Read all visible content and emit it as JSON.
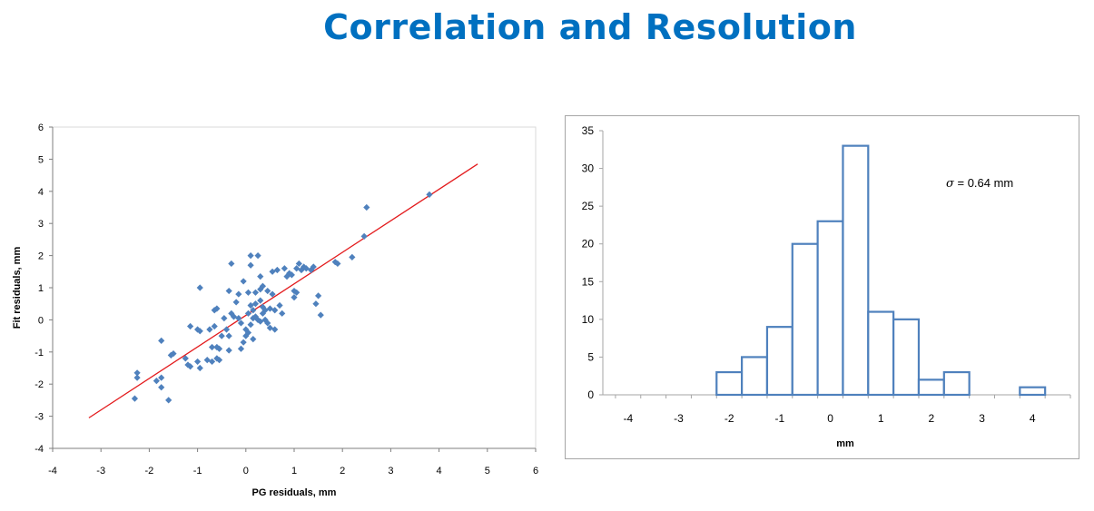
{
  "title": "Correlation and Resolution",
  "chart_data": [
    {
      "type": "scatter",
      "xlabel": "PG residuals, mm",
      "ylabel": "Fit residuals, mm",
      "xlim": [
        -4,
        6
      ],
      "ylim": [
        -4,
        6
      ],
      "xticks": [
        "-4",
        "-3",
        "-2",
        "-1",
        "0",
        "1",
        "2",
        "3",
        "4",
        "5",
        "6"
      ],
      "yticks": [
        "-4",
        "-3",
        "-2",
        "-1",
        "0",
        "1",
        "2",
        "3",
        "4",
        "5",
        "6"
      ],
      "grid": false,
      "colors": {
        "points": "#4f81bd",
        "fit_line": "#e31a1c"
      },
      "fit_line": {
        "x": [
          -3.25,
          4.8
        ],
        "y": [
          -3.05,
          4.85
        ]
      },
      "points": [
        [
          -2.25,
          -1.65
        ],
        [
          -2.25,
          -1.8
        ],
        [
          -2.3,
          -2.45
        ],
        [
          -1.85,
          -1.9
        ],
        [
          -1.75,
          -1.8
        ],
        [
          -1.75,
          -2.1
        ],
        [
          -1.6,
          -2.5
        ],
        [
          -1.75,
          -0.65
        ],
        [
          -1.5,
          -1.05
        ],
        [
          -1.55,
          -1.1
        ],
        [
          -1.25,
          -1.2
        ],
        [
          -1.2,
          -1.4
        ],
        [
          -1.15,
          -1.45
        ],
        [
          -1.15,
          -0.2
        ],
        [
          -1.0,
          -0.3
        ],
        [
          -0.95,
          -0.35
        ],
        [
          -1.0,
          -1.3
        ],
        [
          -0.95,
          -1.5
        ],
        [
          -0.95,
          1.0
        ],
        [
          -0.8,
          -1.25
        ],
        [
          -0.75,
          -0.3
        ],
        [
          -0.7,
          -0.85
        ],
        [
          -0.7,
          -1.3
        ],
        [
          -0.65,
          -0.2
        ],
        [
          -0.6,
          -0.85
        ],
        [
          -0.6,
          -1.2
        ],
        [
          -0.65,
          0.3
        ],
        [
          -0.6,
          0.35
        ],
        [
          -0.55,
          -1.25
        ],
        [
          -0.55,
          -0.9
        ],
        [
          -0.5,
          -0.5
        ],
        [
          -0.45,
          0.05
        ],
        [
          -0.4,
          -0.3
        ],
        [
          -0.35,
          -0.5
        ],
        [
          -0.35,
          -0.95
        ],
        [
          -0.35,
          0.9
        ],
        [
          -0.3,
          1.75
        ],
        [
          -0.3,
          0.2
        ],
        [
          -0.25,
          0.1
        ],
        [
          -0.15,
          0.05
        ],
        [
          -0.15,
          0.8
        ],
        [
          -0.1,
          -0.1
        ],
        [
          -0.1,
          -0.9
        ],
        [
          -0.05,
          -0.7
        ],
        [
          0.0,
          -0.5
        ],
        [
          0.0,
          -0.3
        ],
        [
          0.05,
          -0.4
        ],
        [
          0.05,
          0.2
        ],
        [
          0.1,
          -0.15
        ],
        [
          0.1,
          0.45
        ],
        [
          0.15,
          -0.6
        ],
        [
          0.15,
          0.05
        ],
        [
          0.2,
          0.1
        ],
        [
          0.2,
          0.5
        ],
        [
          0.2,
          0.85
        ],
        [
          0.25,
          0.0
        ],
        [
          0.3,
          -0.05
        ],
        [
          0.3,
          0.6
        ],
        [
          0.3,
          0.95
        ],
        [
          0.35,
          0.2
        ],
        [
          0.35,
          0.4
        ],
        [
          0.4,
          0.3
        ],
        [
          0.4,
          0.0
        ],
        [
          0.45,
          0.9
        ],
        [
          0.45,
          -0.1
        ],
        [
          0.5,
          0.35
        ],
        [
          0.55,
          0.8
        ],
        [
          0.55,
          1.5
        ],
        [
          0.6,
          0.3
        ],
        [
          0.6,
          -0.3
        ],
        [
          0.65,
          1.55
        ],
        [
          0.7,
          0.45
        ],
        [
          0.75,
          0.2
        ],
        [
          0.8,
          1.6
        ],
        [
          0.85,
          1.35
        ],
        [
          0.9,
          1.45
        ],
        [
          0.95,
          1.4
        ],
        [
          1.0,
          0.7
        ],
        [
          1.0,
          0.9
        ],
        [
          1.05,
          0.85
        ],
        [
          1.05,
          1.6
        ],
        [
          1.1,
          1.75
        ],
        [
          1.15,
          1.55
        ],
        [
          1.2,
          1.65
        ],
        [
          1.25,
          1.6
        ],
        [
          1.35,
          1.55
        ],
        [
          1.4,
          1.65
        ],
        [
          1.45,
          0.5
        ],
        [
          1.5,
          0.75
        ],
        [
          1.55,
          0.15
        ],
        [
          1.85,
          1.8
        ],
        [
          1.9,
          1.75
        ],
        [
          2.2,
          1.95
        ],
        [
          2.45,
          2.6
        ],
        [
          2.5,
          3.5
        ],
        [
          3.8,
          3.9
        ],
        [
          0.1,
          2.0
        ],
        [
          0.25,
          2.0
        ],
        [
          0.1,
          1.7
        ],
        [
          0.3,
          1.35
        ],
        [
          -0.2,
          0.55
        ],
        [
          0.05,
          0.85
        ],
        [
          -0.05,
          1.2
        ],
        [
          0.5,
          -0.25
        ],
        [
          0.15,
          0.3
        ],
        [
          0.35,
          1.05
        ]
      ]
    },
    {
      "type": "bar",
      "xlabel": "mm",
      "ylabel": "",
      "xlim": [
        -4.5,
        4.75
      ],
      "ylim": [
        0,
        35
      ],
      "xticks": [
        "-4",
        "-3",
        "-2",
        "-1",
        "0",
        "1",
        "2",
        "3",
        "4"
      ],
      "yticks": [
        "0",
        "5",
        "10",
        "15",
        "20",
        "25",
        "30",
        "35"
      ],
      "annotation": {
        "symbol": "σ",
        "text": " = 0.64 mm"
      },
      "grid": false,
      "colors": {
        "bar_stroke": "#4f81bd",
        "bar_fill": "#ffffff"
      },
      "bin_width": 0.5,
      "bin_starts": [
        -2.25,
        -1.75,
        -1.25,
        -0.75,
        -0.25,
        0.25,
        0.75,
        1.25,
        1.75,
        2.25,
        3.75
      ],
      "values": [
        3,
        5,
        9,
        20,
        23,
        33,
        11,
        10,
        2,
        3,
        1
      ]
    }
  ]
}
